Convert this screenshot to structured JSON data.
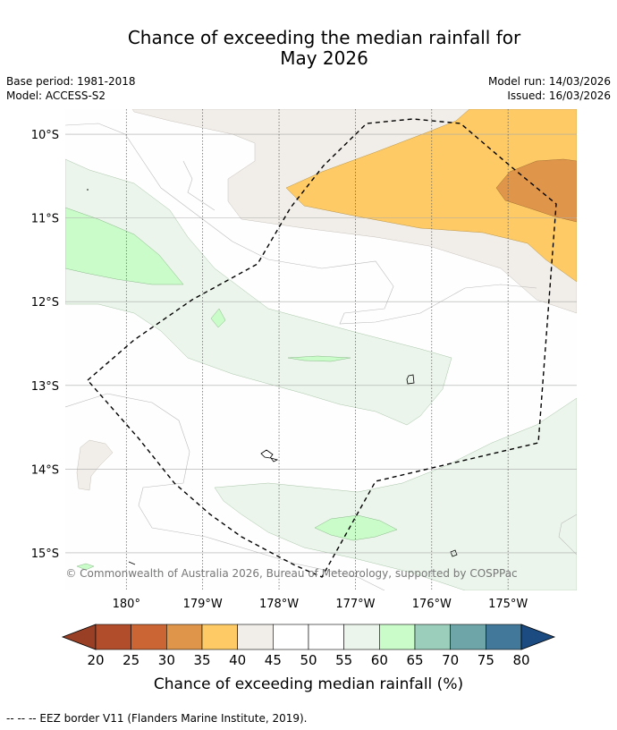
{
  "title_line1": "Chance of exceeding the median rainfall for",
  "title_line2": "May 2026",
  "meta": {
    "base_period": "Base period: 1981-2018",
    "model": "Model: ACCESS-S2",
    "model_run": "Model run: 14/03/2026",
    "issued": "Issued: 16/03/2026"
  },
  "map": {
    "lat_labels": [
      "10°S",
      "11°S",
      "12°S",
      "13°S",
      "14°S",
      "15°S"
    ],
    "lat_values": [
      -10,
      -11,
      -12,
      -13,
      -14,
      -15
    ],
    "lon_labels": [
      "180°",
      "179°W",
      "178°W",
      "177°W",
      "176°W",
      "175°W"
    ],
    "lon_values": [
      180,
      -179,
      -178,
      -177,
      -176,
      -175
    ],
    "copyright": "© Commonwealth of Australia 2026, Bureau of Meteorology, supported by COSPPac",
    "eez_style": "dashed black line"
  },
  "chart_data": {
    "type": "heatmap",
    "title": "Chance of exceeding the median rainfall for May 2026",
    "colorbar_label": "Chance of exceeding median rainfall (%)",
    "colorbar_ticks": [
      20,
      25,
      30,
      35,
      40,
      45,
      50,
      55,
      60,
      65,
      70,
      75,
      80
    ],
    "colorbar_bins": [
      {
        "range": "<20",
        "color": "#993f25"
      },
      {
        "range": "20-25",
        "color": "#b24d2b"
      },
      {
        "range": "25-30",
        "color": "#cb6634"
      },
      {
        "range": "30-35",
        "color": "#e0964a"
      },
      {
        "range": "35-40",
        "color": "#fdca65"
      },
      {
        "range": "40-45",
        "color": "#f1ede8"
      },
      {
        "range": "45-50",
        "color": "#ffffff"
      },
      {
        "range": "50-55",
        "color": "#ffffff"
      },
      {
        "range": "55-60",
        "color": "#ebf5eb"
      },
      {
        "range": "60-65",
        "color": "#c9fcc9"
      },
      {
        "range": "65-70",
        "color": "#9ccfbb"
      },
      {
        "range": "70-75",
        "color": "#6ea5a8"
      },
      {
        "range": "75-80",
        "color": "#42799b"
      },
      {
        "range": ">80",
        "color": "#1b4b80"
      }
    ],
    "xlabel": "",
    "ylabel": "",
    "xlim": [
      179.2,
      185.9
    ],
    "ylim": [
      -15.45,
      -9.7
    ]
  },
  "footer": "--  --  -- EEZ border V11 (Flanders Marine Institute, 2019)."
}
